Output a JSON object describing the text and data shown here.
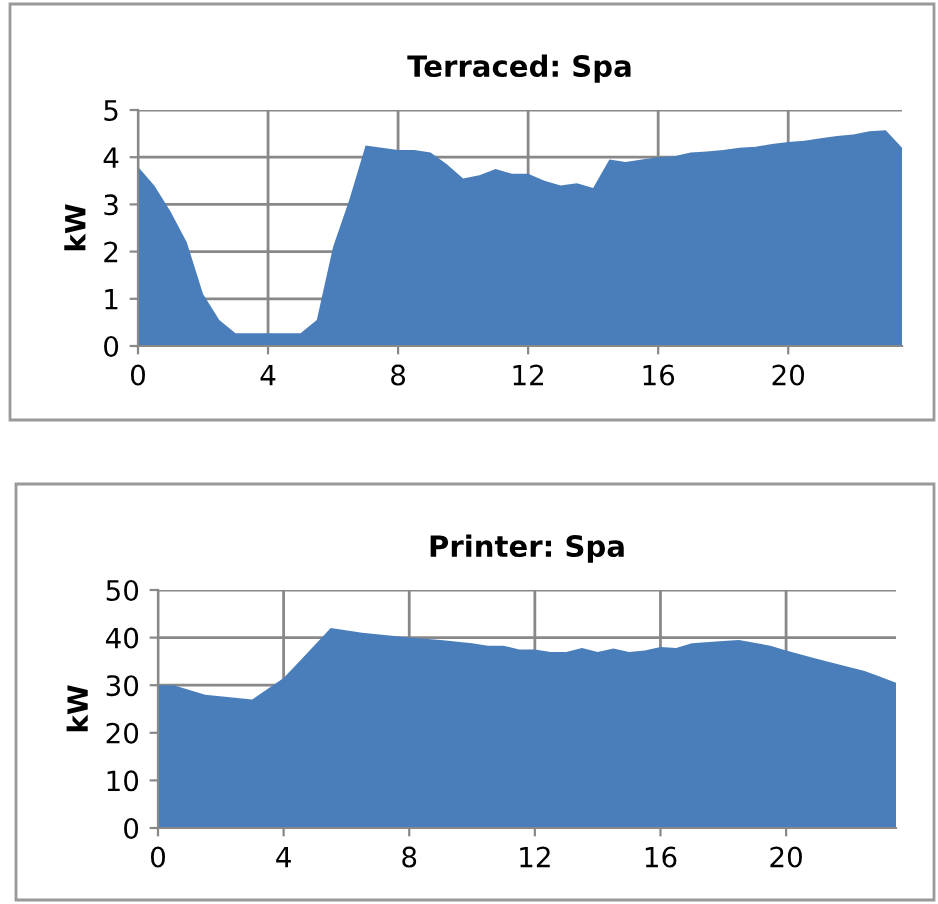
{
  "chart_data": [
    {
      "type": "area",
      "title": "Terraced: Spa",
      "ylabel": "kW",
      "xlim": [
        0,
        23.5
      ],
      "ylim": [
        0,
        5
      ],
      "xticks": [
        0,
        4,
        8,
        12,
        16,
        20
      ],
      "yticks": [
        0,
        1,
        2,
        3,
        4,
        5
      ],
      "grid": true,
      "legend": false,
      "x": [
        0,
        0.5,
        1,
        1.5,
        2,
        2.5,
        3,
        3.5,
        4,
        4.5,
        5,
        5.5,
        6,
        6.5,
        7,
        7.5,
        8,
        8.5,
        9,
        9.5,
        10,
        10.5,
        11,
        11.5,
        12,
        12.5,
        13,
        13.5,
        14,
        14.5,
        15,
        15.5,
        16,
        16.5,
        17,
        17.5,
        18,
        18.5,
        19,
        19.5,
        20,
        20.5,
        21,
        21.5,
        22,
        22.5,
        23,
        23.5
      ],
      "series": [
        {
          "color": "#4a7ebb",
          "values": [
            3.8,
            3.4,
            2.85,
            2.2,
            1.1,
            0.55,
            0.27,
            0.27,
            0.27,
            0.27,
            0.27,
            0.55,
            2.1,
            3.1,
            4.25,
            4.2,
            4.15,
            4.15,
            4.1,
            3.85,
            3.55,
            3.62,
            3.75,
            3.65,
            3.65,
            3.5,
            3.4,
            3.45,
            3.35,
            3.95,
            3.9,
            3.95,
            4.0,
            4.02,
            4.1,
            4.12,
            4.15,
            4.2,
            4.22,
            4.28,
            4.32,
            4.35,
            4.4,
            4.45,
            4.48,
            4.55,
            4.57,
            4.2
          ]
        }
      ]
    },
    {
      "type": "area",
      "title": "Printer: Spa",
      "ylabel": "kW",
      "xlim": [
        0,
        23.5
      ],
      "ylim": [
        0,
        50
      ],
      "xticks": [
        0,
        4,
        8,
        12,
        16,
        20
      ],
      "yticks": [
        0,
        10,
        20,
        30,
        40,
        50
      ],
      "grid": true,
      "legend": false,
      "x": [
        0,
        0.5,
        1.5,
        3,
        4,
        4.5,
        5.5,
        6.5,
        8,
        9,
        10,
        10.5,
        11,
        11.5,
        12,
        12.5,
        13,
        13.5,
        14,
        14.5,
        15,
        15.5,
        16,
        16.5,
        17,
        18,
        18.5,
        19.5,
        20,
        21,
        22,
        22.5,
        23,
        23.5
      ],
      "series": [
        {
          "color": "#4a7ebb",
          "values": [
            30,
            30,
            28,
            27,
            31.5,
            35,
            42,
            41,
            40,
            39.5,
            38.8,
            38.3,
            38.3,
            37.5,
            37.5,
            37,
            37,
            37.8,
            37,
            37.7,
            37,
            37.3,
            38,
            37.8,
            38.8,
            39.3,
            39.5,
            38.3,
            37.3,
            35.5,
            33.8,
            33,
            31.8,
            30.5
          ]
        }
      ]
    }
  ]
}
